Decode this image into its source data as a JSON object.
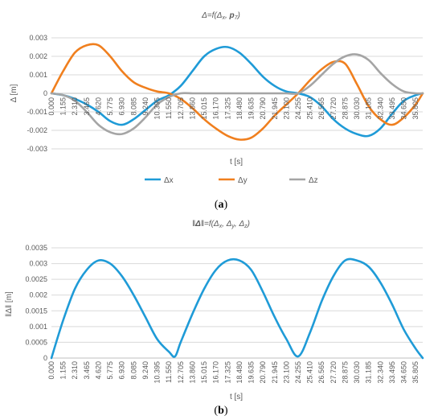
{
  "figure": {
    "caption_a": {
      "open": "(",
      "letter": "a",
      "close": ")"
    },
    "caption_b": {
      "open": "(",
      "letter": "b",
      "close": ")"
    }
  },
  "chart_data": [
    {
      "type": "line",
      "title": "Δ=f(Δ_x, p_7)",
      "title_parts": {
        "pre": "Δ=f(Δ",
        "sub": "x",
        "mid": ", ",
        "bold": "p",
        "sub2": "7",
        "post": ")"
      },
      "xlabel": "t [s]",
      "ylabel": "Δ [m]",
      "ylim": [
        -0.003,
        0.003
      ],
      "y_ticks": [
        0.003,
        0.002,
        0.001,
        0,
        -0.001,
        -0.002,
        -0.003
      ],
      "y_tick_labels": [
        "0.003",
        "0.002",
        "0.001",
        "0",
        "-0.001",
        "-0.002",
        "-0.003"
      ],
      "x_tick_labels": [
        "0.000",
        "1.155",
        "2.310",
        "3.465",
        "4.620",
        "5.775",
        "6.930",
        "8.085",
        "9.240",
        "10.395",
        "11.550",
        "12.705",
        "13.860",
        "15.015",
        "16.170",
        "17.325",
        "18.480",
        "19.635",
        "20.790",
        "21.945",
        "23.100",
        "24.255",
        "25.410",
        "26.565",
        "27.720",
        "28.875",
        "30.030",
        "31.185",
        "32.340",
        "33.495",
        "34.650",
        "35.805"
      ],
      "x_range": [
        0,
        36.5
      ],
      "grid": true,
      "legend_position": "bottom",
      "series": [
        {
          "name": "Δx",
          "color": "#1f9bd7",
          "x": [
            0,
            1.155,
            2.31,
            3.465,
            4.62,
            5.775,
            6.93,
            8.085,
            9.24,
            10.395,
            11.55,
            12.705,
            13.86,
            15.015,
            16.17,
            17.325,
            18.48,
            19.635,
            20.79,
            21.945,
            23.1,
            24.255,
            25.41,
            26.565,
            27.72,
            28.875,
            30.03,
            31.185,
            32.34,
            33.495,
            34.65,
            35.805,
            36.5
          ],
          "values": [
            0,
            -0.0001,
            -0.0003,
            -0.0006,
            -0.001,
            -0.0015,
            -0.0017,
            -0.0014,
            -0.0009,
            -0.0004,
            -0.0001,
            0.0004,
            0.0012,
            0.002,
            0.0024,
            0.0025,
            0.0022,
            0.0016,
            0.0009,
            0.0004,
            0.0001,
            0,
            -0.0002,
            -0.0007,
            -0.0014,
            -0.0019,
            -0.0022,
            -0.0023,
            -0.0019,
            -0.0011,
            -0.0004,
            -0.0001,
            0
          ]
        },
        {
          "name": "Δy",
          "color": "#f07f1e",
          "x": [
            0,
            1.155,
            2.31,
            3.465,
            4.62,
            5.775,
            6.93,
            8.085,
            9.24,
            10.395,
            11.55,
            12.705,
            13.86,
            15.015,
            16.17,
            17.325,
            18.48,
            19.635,
            20.79,
            21.945,
            23.1,
            24.255,
            25.41,
            26.565,
            27.72,
            28.875,
            30.03,
            31.185,
            32.34,
            33.495,
            34.65,
            35.805,
            36.5
          ],
          "values": [
            0,
            0.0012,
            0.0022,
            0.0026,
            0.0026,
            0.002,
            0.0012,
            0.0006,
            0.0003,
            0.0001,
            0,
            -0.0003,
            -0.0008,
            -0.0014,
            -0.0019,
            -0.0023,
            -0.0025,
            -0.0024,
            -0.0019,
            -0.0012,
            -0.0006,
            0,
            0.0007,
            0.0013,
            0.0017,
            0.0016,
            0.0005,
            -0.0007,
            -0.0014,
            -0.0017,
            -0.0013,
            -0.0006,
            0
          ]
        },
        {
          "name": "Δz",
          "color": "#a5a5a5",
          "x": [
            0,
            1.155,
            2.31,
            3.465,
            4.62,
            5.775,
            6.93,
            8.085,
            9.24,
            10.395,
            11.55,
            12.705,
            13.86,
            15.015,
            16.17,
            17.325,
            18.48,
            19.635,
            20.79,
            21.945,
            23.1,
            24.255,
            25.41,
            26.565,
            27.72,
            28.875,
            30.03,
            31.185,
            32.34,
            33.495,
            34.65,
            35.805,
            36.5
          ],
          "values": [
            0,
            -0.0001,
            -0.0004,
            -0.001,
            -0.0017,
            -0.0021,
            -0.0022,
            -0.0019,
            -0.0013,
            -0.0006,
            -0.0002,
            0,
            0,
            0,
            0,
            0,
            0,
            0,
            0,
            0,
            0,
            0,
            0.0004,
            0.001,
            0.0016,
            0.002,
            0.0021,
            0.0018,
            0.0011,
            0.0005,
            0.0001,
            0,
            0
          ]
        }
      ]
    },
    {
      "type": "line",
      "title": "‖Δ‖=f(Δ_x, Δ_y, Δ_z)",
      "title_parts": {
        "pre": "‖",
        "bold": "Δ",
        "mid": "‖=f(Δ",
        "s1": "x",
        "c1": ", Δ",
        "s2": "y",
        "c2": ", Δ",
        "s3": "z",
        "post": ")"
      },
      "xlabel": "t [s]",
      "ylabel": "‖Δ‖ [m]",
      "ylim": [
        0,
        0.0035
      ],
      "y_ticks": [
        0.0035,
        0.003,
        0.0025,
        0.002,
        0.0015,
        0.001,
        0.0005,
        0
      ],
      "y_tick_labels": [
        "0.0035",
        "0.003",
        "0.0025",
        "0.002",
        "0.0015",
        "0.001",
        "0.0005",
        "0"
      ],
      "x_tick_labels": [
        "0.000",
        "1.155",
        "2.310",
        "3.465",
        "4.620",
        "5.775",
        "6.930",
        "8.085",
        "9.240",
        "10.395",
        "11.550",
        "12.705",
        "13.860",
        "15.015",
        "16.170",
        "17.325",
        "18.480",
        "19.635",
        "20.790",
        "21.945",
        "23.100",
        "24.255",
        "25.410",
        "26.565",
        "27.720",
        "28.875",
        "30.030",
        "31.185",
        "32.340",
        "33.495",
        "34.650",
        "35.805"
      ],
      "x_range": [
        0,
        36.5
      ],
      "grid": true,
      "series": [
        {
          "name": "",
          "color": "#1f9bd7",
          "x": [
            0,
            1.155,
            2.31,
            3.465,
            4.62,
            5.775,
            6.93,
            8.085,
            9.24,
            10.395,
            11.55,
            12.15,
            12.705,
            13.86,
            15.015,
            16.17,
            17.325,
            18.48,
            19.635,
            20.79,
            21.945,
            23.1,
            24.255,
            25.41,
            26.565,
            27.72,
            28.875,
            30.03,
            31.185,
            32.34,
            33.495,
            34.65,
            35.805,
            36.5
          ],
          "values": [
            0,
            0.0012,
            0.0022,
            0.0028,
            0.0031,
            0.003,
            0.0026,
            0.002,
            0.0013,
            0.0006,
            0.0002,
            5e-05,
            0.0005,
            0.0014,
            0.0022,
            0.0028,
            0.0031,
            0.0031,
            0.0028,
            0.0021,
            0.0013,
            0.0006,
            5e-05,
            0.0008,
            0.0018,
            0.0026,
            0.0031,
            0.0031,
            0.0029,
            0.0024,
            0.0017,
            0.0009,
            0.0003,
            0
          ]
        }
      ]
    }
  ]
}
